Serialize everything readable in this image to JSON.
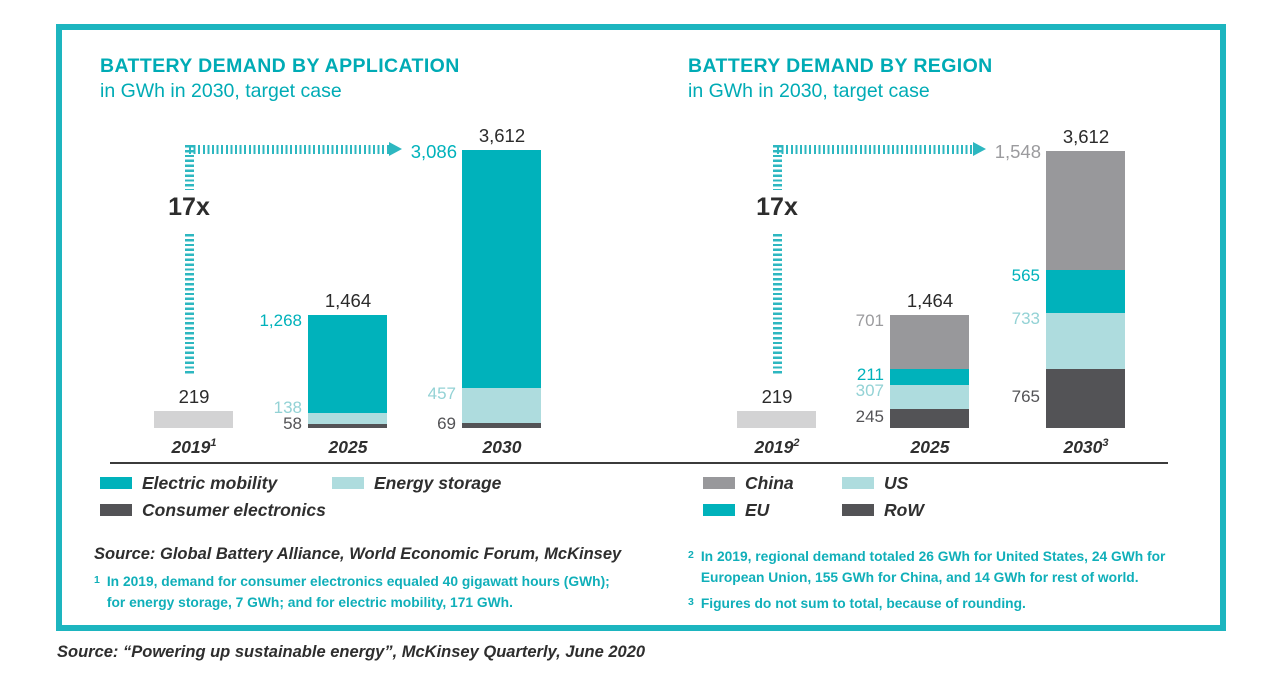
{
  "page": {
    "source_line": "Source: “Powering up sustainable energy”, McKinsey Quarterly, June 2020"
  },
  "colors": {
    "teal": "#00b2bb",
    "light_teal": "#aedcde",
    "gray": "#98989b",
    "light_gray": "#d3d3d4",
    "dark_gray": "#535356",
    "frame_teal": "#1db5bf",
    "title_teal": "#00abb5",
    "footnote_teal": "#10afb9",
    "dash_teal": "#2db7c0",
    "text_dark": "#2b2b2b",
    "label_light_teal": "#93d2d5",
    "label_gray": "#9b9b9e"
  },
  "chart_data": [
    {
      "type": "bar",
      "stacked": true,
      "title": "BATTERY DEMAND BY APPLICATION",
      "subtitle": "in GWh in 2030, target case",
      "unit": "GWh",
      "ylim": [
        0,
        3700
      ],
      "grid": false,
      "legend_position": "below",
      "growth_annotation": {
        "label": "17x",
        "from_category": "2019",
        "to_category": "2030"
      },
      "bars": [
        {
          "category": "2019",
          "sup": "1",
          "total": 219,
          "total_label": "219",
          "segments": [
            {
              "name": "2019 total",
              "value": 219,
              "color_key": "light_gray"
            }
          ]
        },
        {
          "category": "2025",
          "sup": "",
          "total": 1464,
          "total_label": "1,464",
          "segments": [
            {
              "name": "Consumer electronics",
              "value": 58,
              "label": "58",
              "color_key": "dark_gray",
              "label_color_key": "dark_gray"
            },
            {
              "name": "Energy storage",
              "value": 138,
              "label": "138",
              "color_key": "light_teal",
              "label_color_key": "label_light_teal"
            },
            {
              "name": "Electric mobility",
              "value": 1268,
              "label": "1,268",
              "color_key": "teal",
              "label_color_key": "teal"
            }
          ]
        },
        {
          "category": "2030",
          "sup": "",
          "total": 3612,
          "total_label": "3,612",
          "segments": [
            {
              "name": "Consumer electronics",
              "value": 69,
              "label": "69",
              "color_key": "dark_gray",
              "label_color_key": "dark_gray"
            },
            {
              "name": "Energy storage",
              "value": 457,
              "label": "457",
              "color_key": "light_teal",
              "label_color_key": "label_light_teal"
            },
            {
              "name": "Electric mobility",
              "value": 3086,
              "label": "3,086",
              "color_key": "teal",
              "label_color_key": "teal",
              "at_arrow": true
            }
          ]
        }
      ],
      "legend_rows": [
        [
          {
            "label": "Electric mobility",
            "color_key": "teal"
          },
          {
            "label": "Energy storage",
            "color_key": "light_teal"
          }
        ],
        [
          {
            "label": "Consumer electronics",
            "color_key": "dark_gray"
          }
        ]
      ],
      "footnote_source": "Source: Global Battery Alliance, World Economic Forum, McKinsey",
      "footnotes": [
        {
          "marker": "1",
          "text": "In 2019, demand for consumer electronics equaled 40 gigawatt hours (GWh);\nfor energy storage, 7 GWh; and for electric mobility, 171 GWh."
        }
      ]
    },
    {
      "type": "bar",
      "stacked": true,
      "title": "BATTERY DEMAND BY REGION",
      "subtitle": "in GWh in 2030, target case",
      "unit": "GWh",
      "ylim": [
        0,
        3700
      ],
      "grid": false,
      "legend_position": "below",
      "growth_annotation": {
        "label": "17x",
        "from_category": "2019",
        "to_category": "2030"
      },
      "bars": [
        {
          "category": "2019",
          "sup": "2",
          "total": 219,
          "total_label": "219",
          "segments": [
            {
              "name": "2019 total",
              "value": 219,
              "color_key": "light_gray"
            }
          ]
        },
        {
          "category": "2025",
          "sup": "",
          "total": 1464,
          "total_label": "1,464",
          "segments": [
            {
              "name": "RoW",
              "value": 245,
              "label": "245",
              "color_key": "dark_gray",
              "label_color_key": "dark_gray"
            },
            {
              "name": "US",
              "value": 307,
              "label": "307",
              "color_key": "light_teal",
              "label_color_key": "label_light_teal"
            },
            {
              "name": "EU",
              "value": 211,
              "label": "211",
              "color_key": "teal",
              "label_color_key": "teal"
            },
            {
              "name": "China",
              "value": 701,
              "label": "701",
              "color_key": "gray",
              "label_color_key": "label_gray"
            }
          ]
        },
        {
          "category": "2030",
          "sup": "3",
          "total": 3612,
          "total_label": "3,612",
          "segments": [
            {
              "name": "RoW",
              "value": 765,
              "label": "765",
              "color_key": "dark_gray",
              "label_color_key": "dark_gray"
            },
            {
              "name": "US",
              "value": 733,
              "label": "733",
              "color_key": "light_teal",
              "label_color_key": "label_light_teal"
            },
            {
              "name": "EU",
              "value": 565,
              "label": "565",
              "color_key": "teal",
              "label_color_key": "teal"
            },
            {
              "name": "China",
              "value": 1548,
              "label": "1,548",
              "color_key": "gray",
              "label_color_key": "label_gray",
              "at_arrow": true
            }
          ]
        }
      ],
      "legend_rows": [
        [
          {
            "label": "China",
            "color_key": "gray"
          },
          {
            "label": "US",
            "color_key": "light_teal"
          }
        ],
        [
          {
            "label": "EU",
            "color_key": "teal"
          },
          {
            "label": "RoW",
            "color_key": "dark_gray"
          }
        ]
      ],
      "footnote_source": null,
      "footnotes": [
        {
          "marker": "2",
          "text": "In 2019, regional demand totaled 26 GWh for United States, 24 GWh for\nEuropean Union, 155 GWh for China, and 14 GWh for rest of world."
        },
        {
          "marker": "3",
          "text": "Figures do not sum to total, because of rounding."
        }
      ]
    }
  ]
}
